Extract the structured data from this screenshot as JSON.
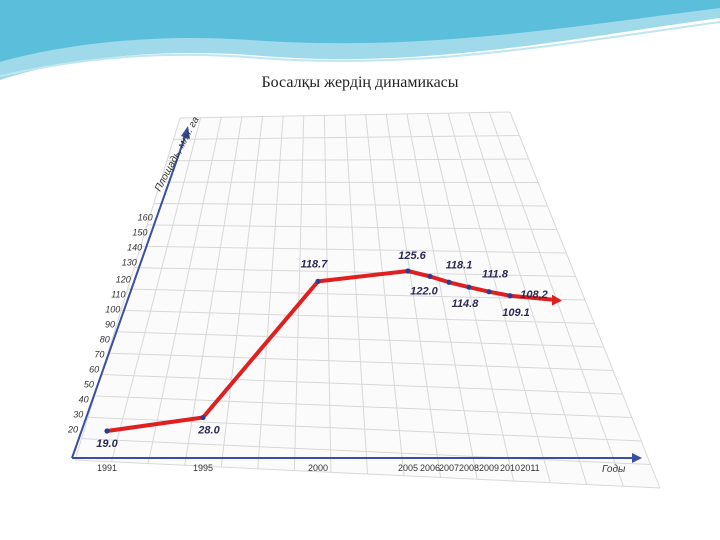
{
  "slide": {
    "title": "Босалқы жердің  динамикасы"
  },
  "colors": {
    "line": "#e02020",
    "marker": "#2a3f8f",
    "axis": "#3a4fa0",
    "grid": "#d8d8d8",
    "wave": "#4fb8d8"
  },
  "chart_data": {
    "type": "line",
    "title": "",
    "xlabel": "Годы",
    "ylabel": "Площадь, млн. га",
    "ylim": [
      10,
      160
    ],
    "y_ticks": [
      20,
      30,
      40,
      50,
      60,
      70,
      80,
      90,
      100,
      110,
      120,
      130,
      140,
      150,
      160
    ],
    "x_ticks": [
      1991,
      1995,
      2000,
      2005,
      2006,
      2007,
      2008,
      2009,
      2010,
      2011
    ],
    "x_tick_labels": [
      "1991",
      "1995",
      "2000",
      "2005",
      "2006",
      "2007",
      "2008",
      "2009",
      "2010",
      "2011"
    ],
    "series": [
      {
        "x": [
          1991,
          1995,
          2000,
          2005,
          2006,
          2007,
          2008,
          2009,
          2010
        ],
        "y": [
          19.0,
          28.0,
          118.7,
          125.6,
          122.0,
          118.1,
          114.8,
          111.8,
          109.1
        ],
        "labels": [
          "19.0",
          "28.0",
          "118.7",
          "125.6",
          "122.0",
          "118.1",
          "114.8",
          "111.8",
          "109.1"
        ]
      }
    ],
    "end_label": "108,2",
    "grid": true
  }
}
